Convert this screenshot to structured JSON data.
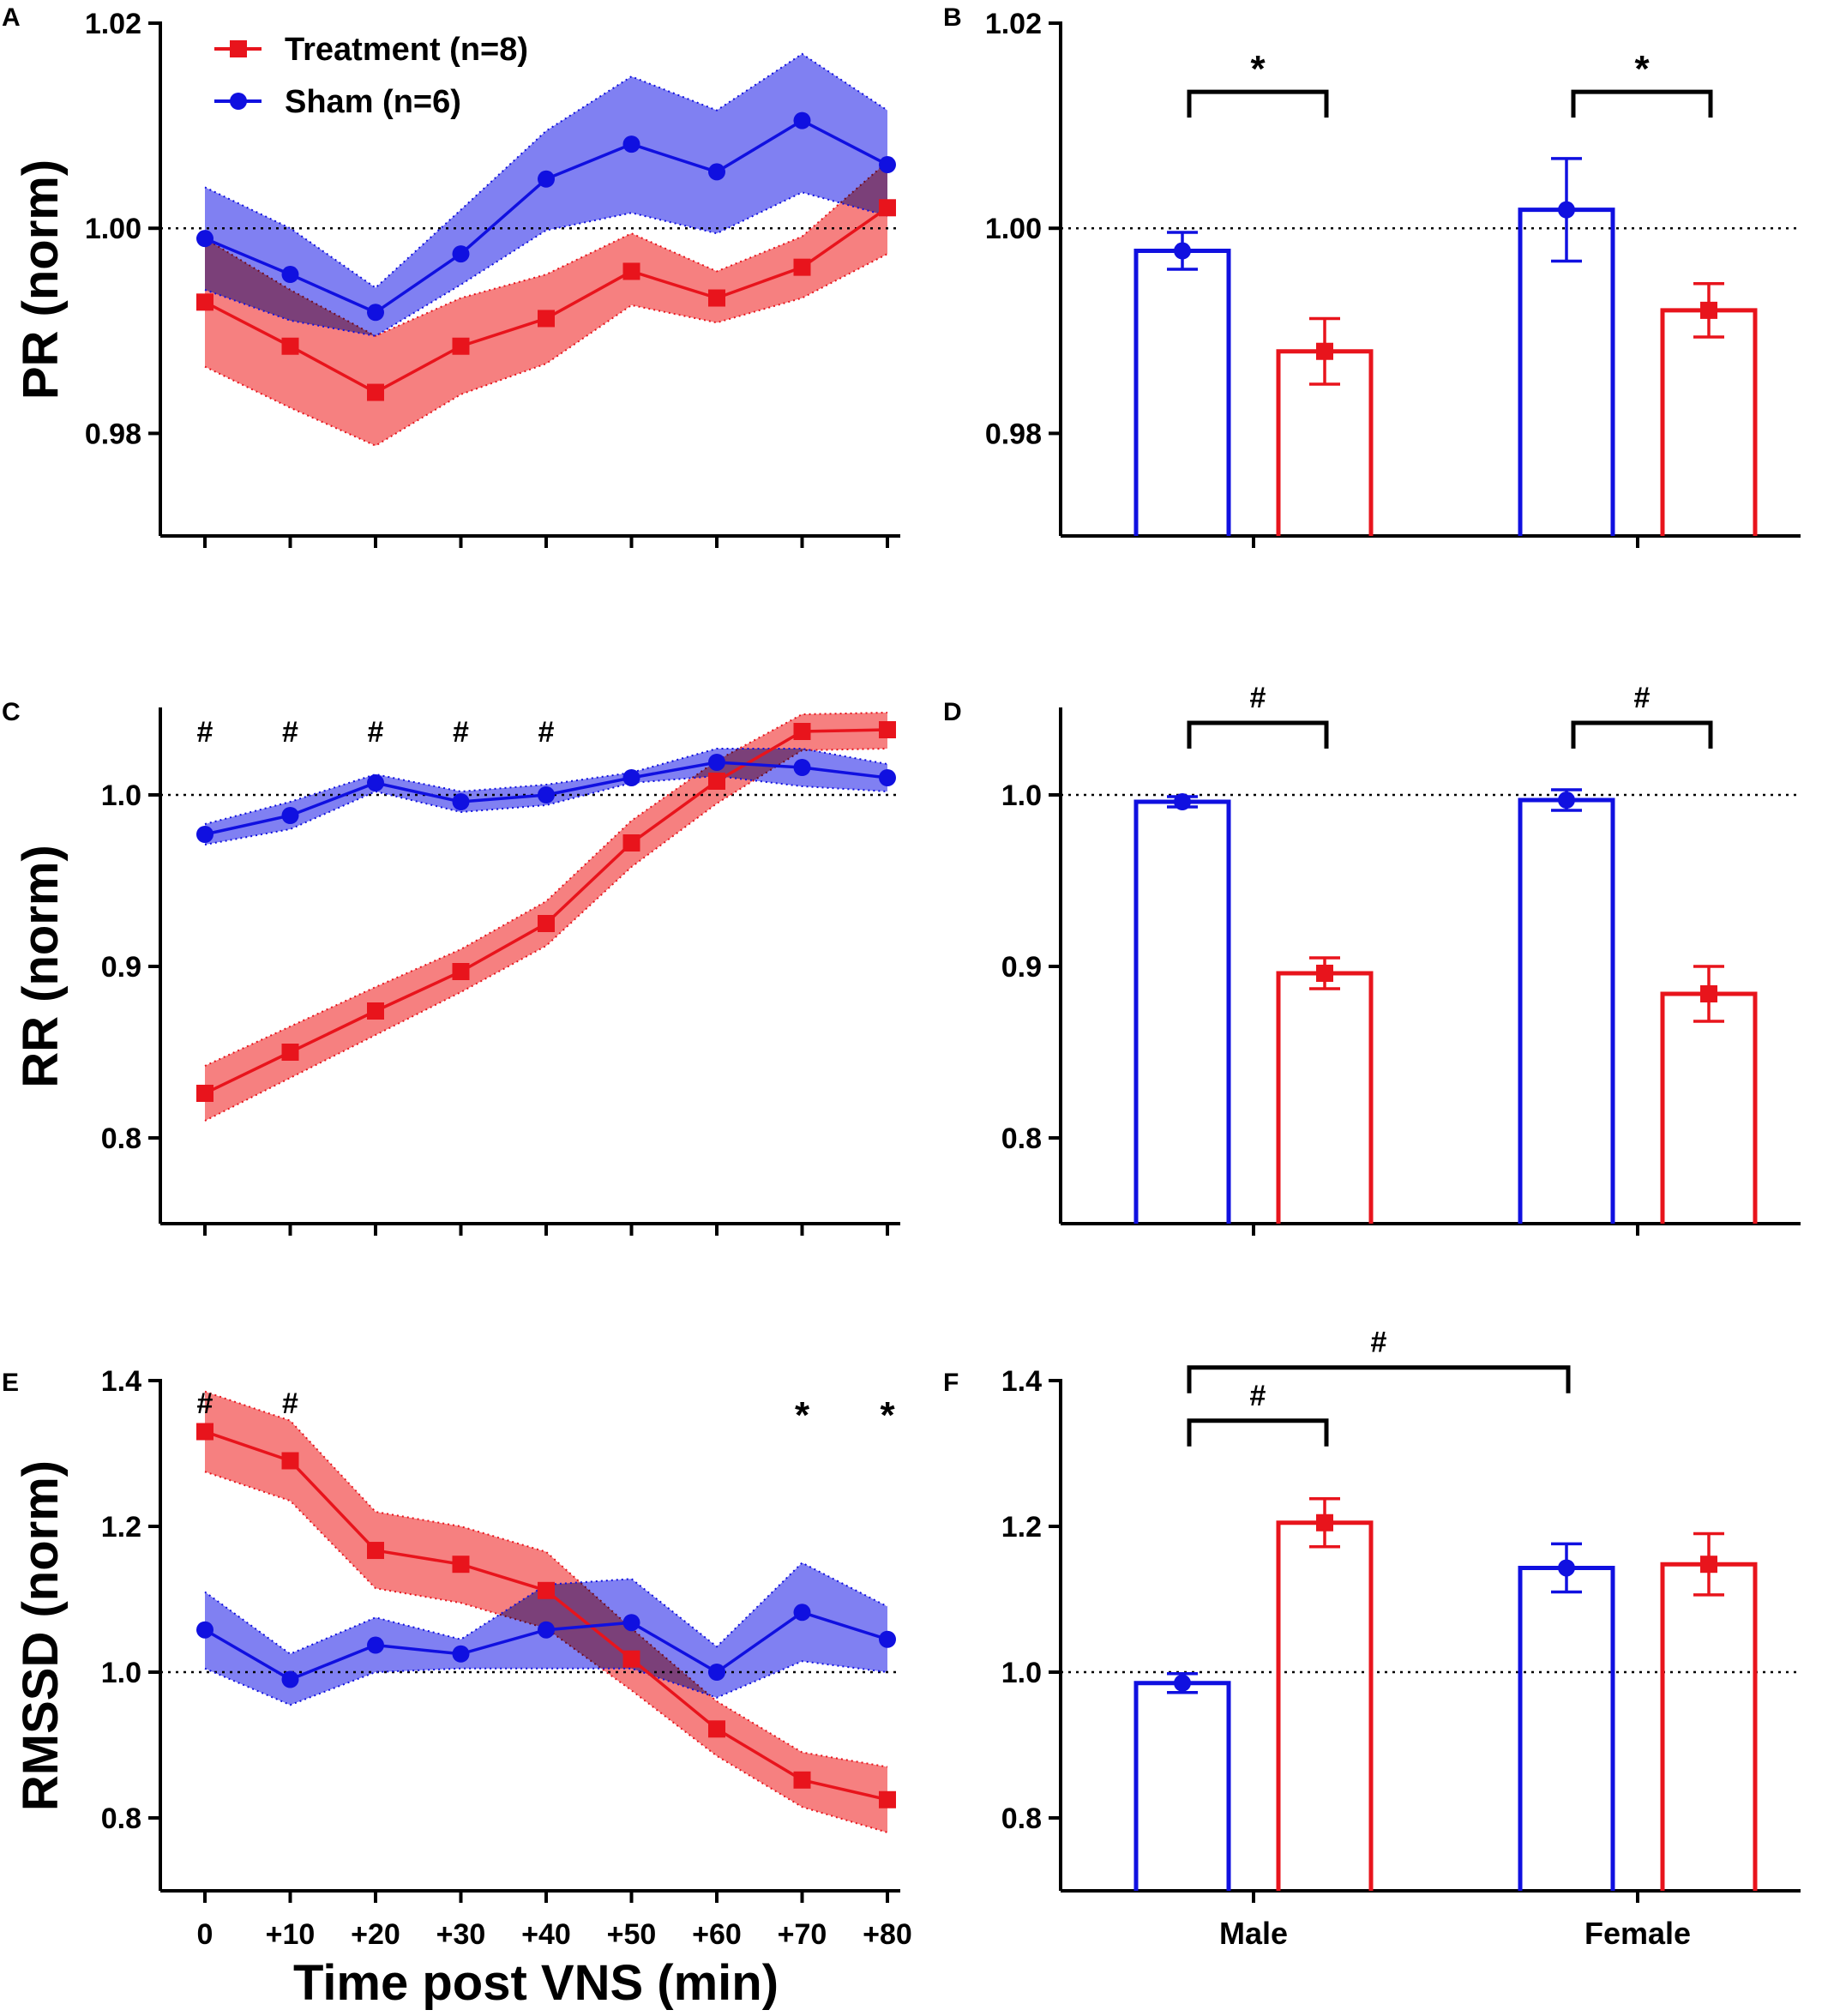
{
  "colors": {
    "treatment": "#e8141c",
    "sham": "#1010e0",
    "treatment_fill": "#f46a6a",
    "sham_fill": "#6a6af0"
  },
  "legend": {
    "treatment": "Treatment (n=8)",
    "sham": "Sham (n=6)"
  },
  "shared_xlabel": "Time post VNS (min)",
  "chart_data": [
    {
      "panel": "A",
      "type": "line",
      "ylabel": "PR (norm)",
      "ylim": [
        0.97,
        1.02
      ],
      "yticks": [
        0.98,
        1.0,
        1.02
      ],
      "ytick_labels": [
        "0.98",
        "1.00",
        "1.02"
      ],
      "reference_line": 1.0,
      "x": [
        0,
        10,
        20,
        30,
        40,
        50,
        60,
        70,
        80
      ],
      "xtick_labels": [
        "",
        "",
        "",
        "",
        "",
        "",
        "",
        "",
        ""
      ],
      "series": [
        {
          "name": "Treatment (n=8)",
          "color_key": "treatment",
          "marker": "square",
          "values": [
            0.9928,
            0.9885,
            0.984,
            0.9885,
            0.9912,
            0.9958,
            0.9932,
            0.9962,
            1.002
          ],
          "lower": [
            0.9865,
            0.9825,
            0.9788,
            0.9838,
            0.9868,
            0.9925,
            0.9908,
            0.9932,
            0.9975
          ],
          "upper": [
            0.999,
            0.994,
            0.9895,
            0.9932,
            0.9955,
            0.9995,
            0.9958,
            0.9992,
            1.0065
          ]
        },
        {
          "name": "Sham (n=6)",
          "color_key": "sham",
          "marker": "circle",
          "values": [
            0.999,
            0.9955,
            0.9918,
            0.9975,
            1.0048,
            1.0082,
            1.0055,
            1.0105,
            1.0062
          ],
          "lower": [
            0.994,
            0.991,
            0.9895,
            0.9945,
            0.9998,
            1.0015,
            0.9995,
            1.0035,
            1.0012
          ],
          "upper": [
            1.004,
            1.0,
            0.9942,
            1.0018,
            1.0095,
            1.0148,
            1.0115,
            1.017,
            1.0115
          ]
        }
      ],
      "annotations": []
    },
    {
      "panel": "B",
      "type": "bar",
      "ylabel": "",
      "ylim": [
        0.97,
        1.02
      ],
      "yticks": [
        0.98,
        1.0,
        1.02
      ],
      "ytick_labels": [
        "0.98",
        "1.00",
        "1.02"
      ],
      "reference_line": 1.0,
      "categories": [
        "",
        ""
      ],
      "bars": [
        {
          "group": 0,
          "color_key": "sham",
          "marker": "circle",
          "value": 0.9978,
          "err": 0.0018
        },
        {
          "group": 0,
          "color_key": "treatment",
          "marker": "square",
          "value": 0.988,
          "err": 0.0032
        },
        {
          "group": 1,
          "color_key": "sham",
          "marker": "circle",
          "value": 1.0018,
          "err": 0.005
        },
        {
          "group": 1,
          "color_key": "treatment",
          "marker": "square",
          "value": 0.992,
          "err": 0.0026
        }
      ],
      "brackets": [
        {
          "from_bar": 0,
          "to_bar": 1,
          "y": 1.0133,
          "label": "*"
        },
        {
          "from_bar": 2,
          "to_bar": 3,
          "y": 1.0133,
          "label": "*"
        }
      ]
    },
    {
      "panel": "C",
      "type": "line",
      "ylabel": "RR (norm)",
      "ylim": [
        0.75,
        1.05
      ],
      "yticks": [
        0.8,
        0.9,
        1.0
      ],
      "ytick_labels": [
        "0.8",
        "0.9",
        "1.0"
      ],
      "reference_line": 1.0,
      "x": [
        0,
        10,
        20,
        30,
        40,
        50,
        60,
        70,
        80
      ],
      "xtick_labels": [
        "",
        "",
        "",
        "",
        "",
        "",
        "",
        "",
        ""
      ],
      "series": [
        {
          "name": "Treatment (n=8)",
          "color_key": "treatment",
          "marker": "square",
          "values": [
            0.826,
            0.85,
            0.874,
            0.897,
            0.925,
            0.972,
            1.008,
            1.037,
            1.038
          ],
          "lower": [
            0.81,
            0.835,
            0.86,
            0.885,
            0.912,
            0.958,
            0.995,
            1.026,
            1.027
          ],
          "upper": [
            0.842,
            0.865,
            0.888,
            0.91,
            0.938,
            0.985,
            1.02,
            1.047,
            1.048
          ]
        },
        {
          "name": "Sham (n=6)",
          "color_key": "sham",
          "marker": "circle",
          "values": [
            0.977,
            0.988,
            1.007,
            0.996,
            1.0,
            1.01,
            1.019,
            1.016,
            1.01
          ],
          "lower": [
            0.971,
            0.98,
            1.002,
            0.99,
            0.994,
            1.007,
            1.011,
            1.005,
            1.002
          ],
          "upper": [
            0.983,
            0.996,
            1.012,
            1.002,
            1.006,
            1.013,
            1.027,
            1.027,
            1.018
          ]
        }
      ],
      "annotations": [
        {
          "x": 0,
          "label": "#"
        },
        {
          "x": 10,
          "label": "#"
        },
        {
          "x": 20,
          "label": "#"
        },
        {
          "x": 30,
          "label": "#"
        },
        {
          "x": 40,
          "label": "#"
        }
      ]
    },
    {
      "panel": "D",
      "type": "bar",
      "ylabel": "",
      "ylim": [
        0.75,
        1.05
      ],
      "yticks": [
        0.8,
        0.9,
        1.0
      ],
      "ytick_labels": [
        "0.8",
        "0.9",
        "1.0"
      ],
      "reference_line": 1.0,
      "categories": [
        "",
        ""
      ],
      "bars": [
        {
          "group": 0,
          "color_key": "sham",
          "marker": "circle",
          "value": 0.996,
          "err": 0.003
        },
        {
          "group": 0,
          "color_key": "treatment",
          "marker": "square",
          "value": 0.896,
          "err": 0.009
        },
        {
          "group": 1,
          "color_key": "sham",
          "marker": "circle",
          "value": 0.997,
          "err": 0.006
        },
        {
          "group": 1,
          "color_key": "treatment",
          "marker": "square",
          "value": 0.884,
          "err": 0.016
        }
      ],
      "brackets": [
        {
          "from_bar": 0,
          "to_bar": 1,
          "y": 1.042,
          "label": "#"
        },
        {
          "from_bar": 2,
          "to_bar": 3,
          "y": 1.042,
          "label": "#"
        }
      ]
    },
    {
      "panel": "E",
      "type": "line",
      "ylabel": "RMSSD (norm)",
      "ylim": [
        0.7,
        1.4
      ],
      "yticks": [
        0.8,
        1.0,
        1.2,
        1.4
      ],
      "ytick_labels": [
        "0.8",
        "1.0",
        "1.2",
        "1.4"
      ],
      "reference_line": 1.0,
      "x": [
        0,
        10,
        20,
        30,
        40,
        50,
        60,
        70,
        80
      ],
      "xtick_labels": [
        "0",
        "+10",
        "+20",
        "+30",
        "+40",
        "+50",
        "+60",
        "+70",
        "+80"
      ],
      "series": [
        {
          "name": "Treatment (n=8)",
          "color_key": "treatment",
          "marker": "square",
          "values": [
            1.33,
            1.29,
            1.167,
            1.148,
            1.112,
            1.018,
            0.922,
            0.852,
            0.825
          ],
          "lower": [
            1.275,
            1.235,
            1.115,
            1.095,
            1.06,
            0.975,
            0.885,
            0.815,
            0.78
          ],
          "upper": [
            1.385,
            1.345,
            1.22,
            1.2,
            1.165,
            1.06,
            0.96,
            0.89,
            0.87
          ]
        },
        {
          "name": "Sham (n=6)",
          "color_key": "sham",
          "marker": "circle",
          "values": [
            1.058,
            0.99,
            1.037,
            1.025,
            1.058,
            1.068,
            1.0,
            1.082,
            1.045
          ],
          "lower": [
            1.005,
            0.955,
            1.0,
            1.005,
            1.005,
            1.005,
            0.965,
            1.015,
            1.0
          ],
          "upper": [
            1.11,
            1.025,
            1.075,
            1.045,
            1.12,
            1.128,
            1.035,
            1.15,
            1.09
          ]
        }
      ],
      "annotations": [
        {
          "x": 0,
          "label": "#"
        },
        {
          "x": 10,
          "label": "#"
        },
        {
          "x": 70,
          "label": "*"
        },
        {
          "x": 80,
          "label": "*"
        }
      ]
    },
    {
      "panel": "F",
      "type": "bar",
      "ylabel": "",
      "ylim": [
        0.7,
        1.4
      ],
      "yticks": [
        0.8,
        1.0,
        1.2,
        1.4
      ],
      "ytick_labels": [
        "0.8",
        "1.0",
        "1.2",
        "1.4"
      ],
      "reference_line": 1.0,
      "categories": [
        "Male",
        "Female"
      ],
      "bars": [
        {
          "group": 0,
          "color_key": "sham",
          "marker": "circle",
          "value": 0.985,
          "err": 0.013
        },
        {
          "group": 0,
          "color_key": "treatment",
          "marker": "square",
          "value": 1.205,
          "err": 0.033
        },
        {
          "group": 1,
          "color_key": "sham",
          "marker": "circle",
          "value": 1.143,
          "err": 0.033
        },
        {
          "group": 1,
          "color_key": "treatment",
          "marker": "square",
          "value": 1.148,
          "err": 0.042
        }
      ],
      "brackets": [
        {
          "from_bar": 0,
          "to_bar": 1,
          "y": 1.345,
          "label": "#"
        },
        {
          "from_bar": 0,
          "to_bar": 2,
          "y": 1.418,
          "label": "#"
        }
      ]
    }
  ]
}
